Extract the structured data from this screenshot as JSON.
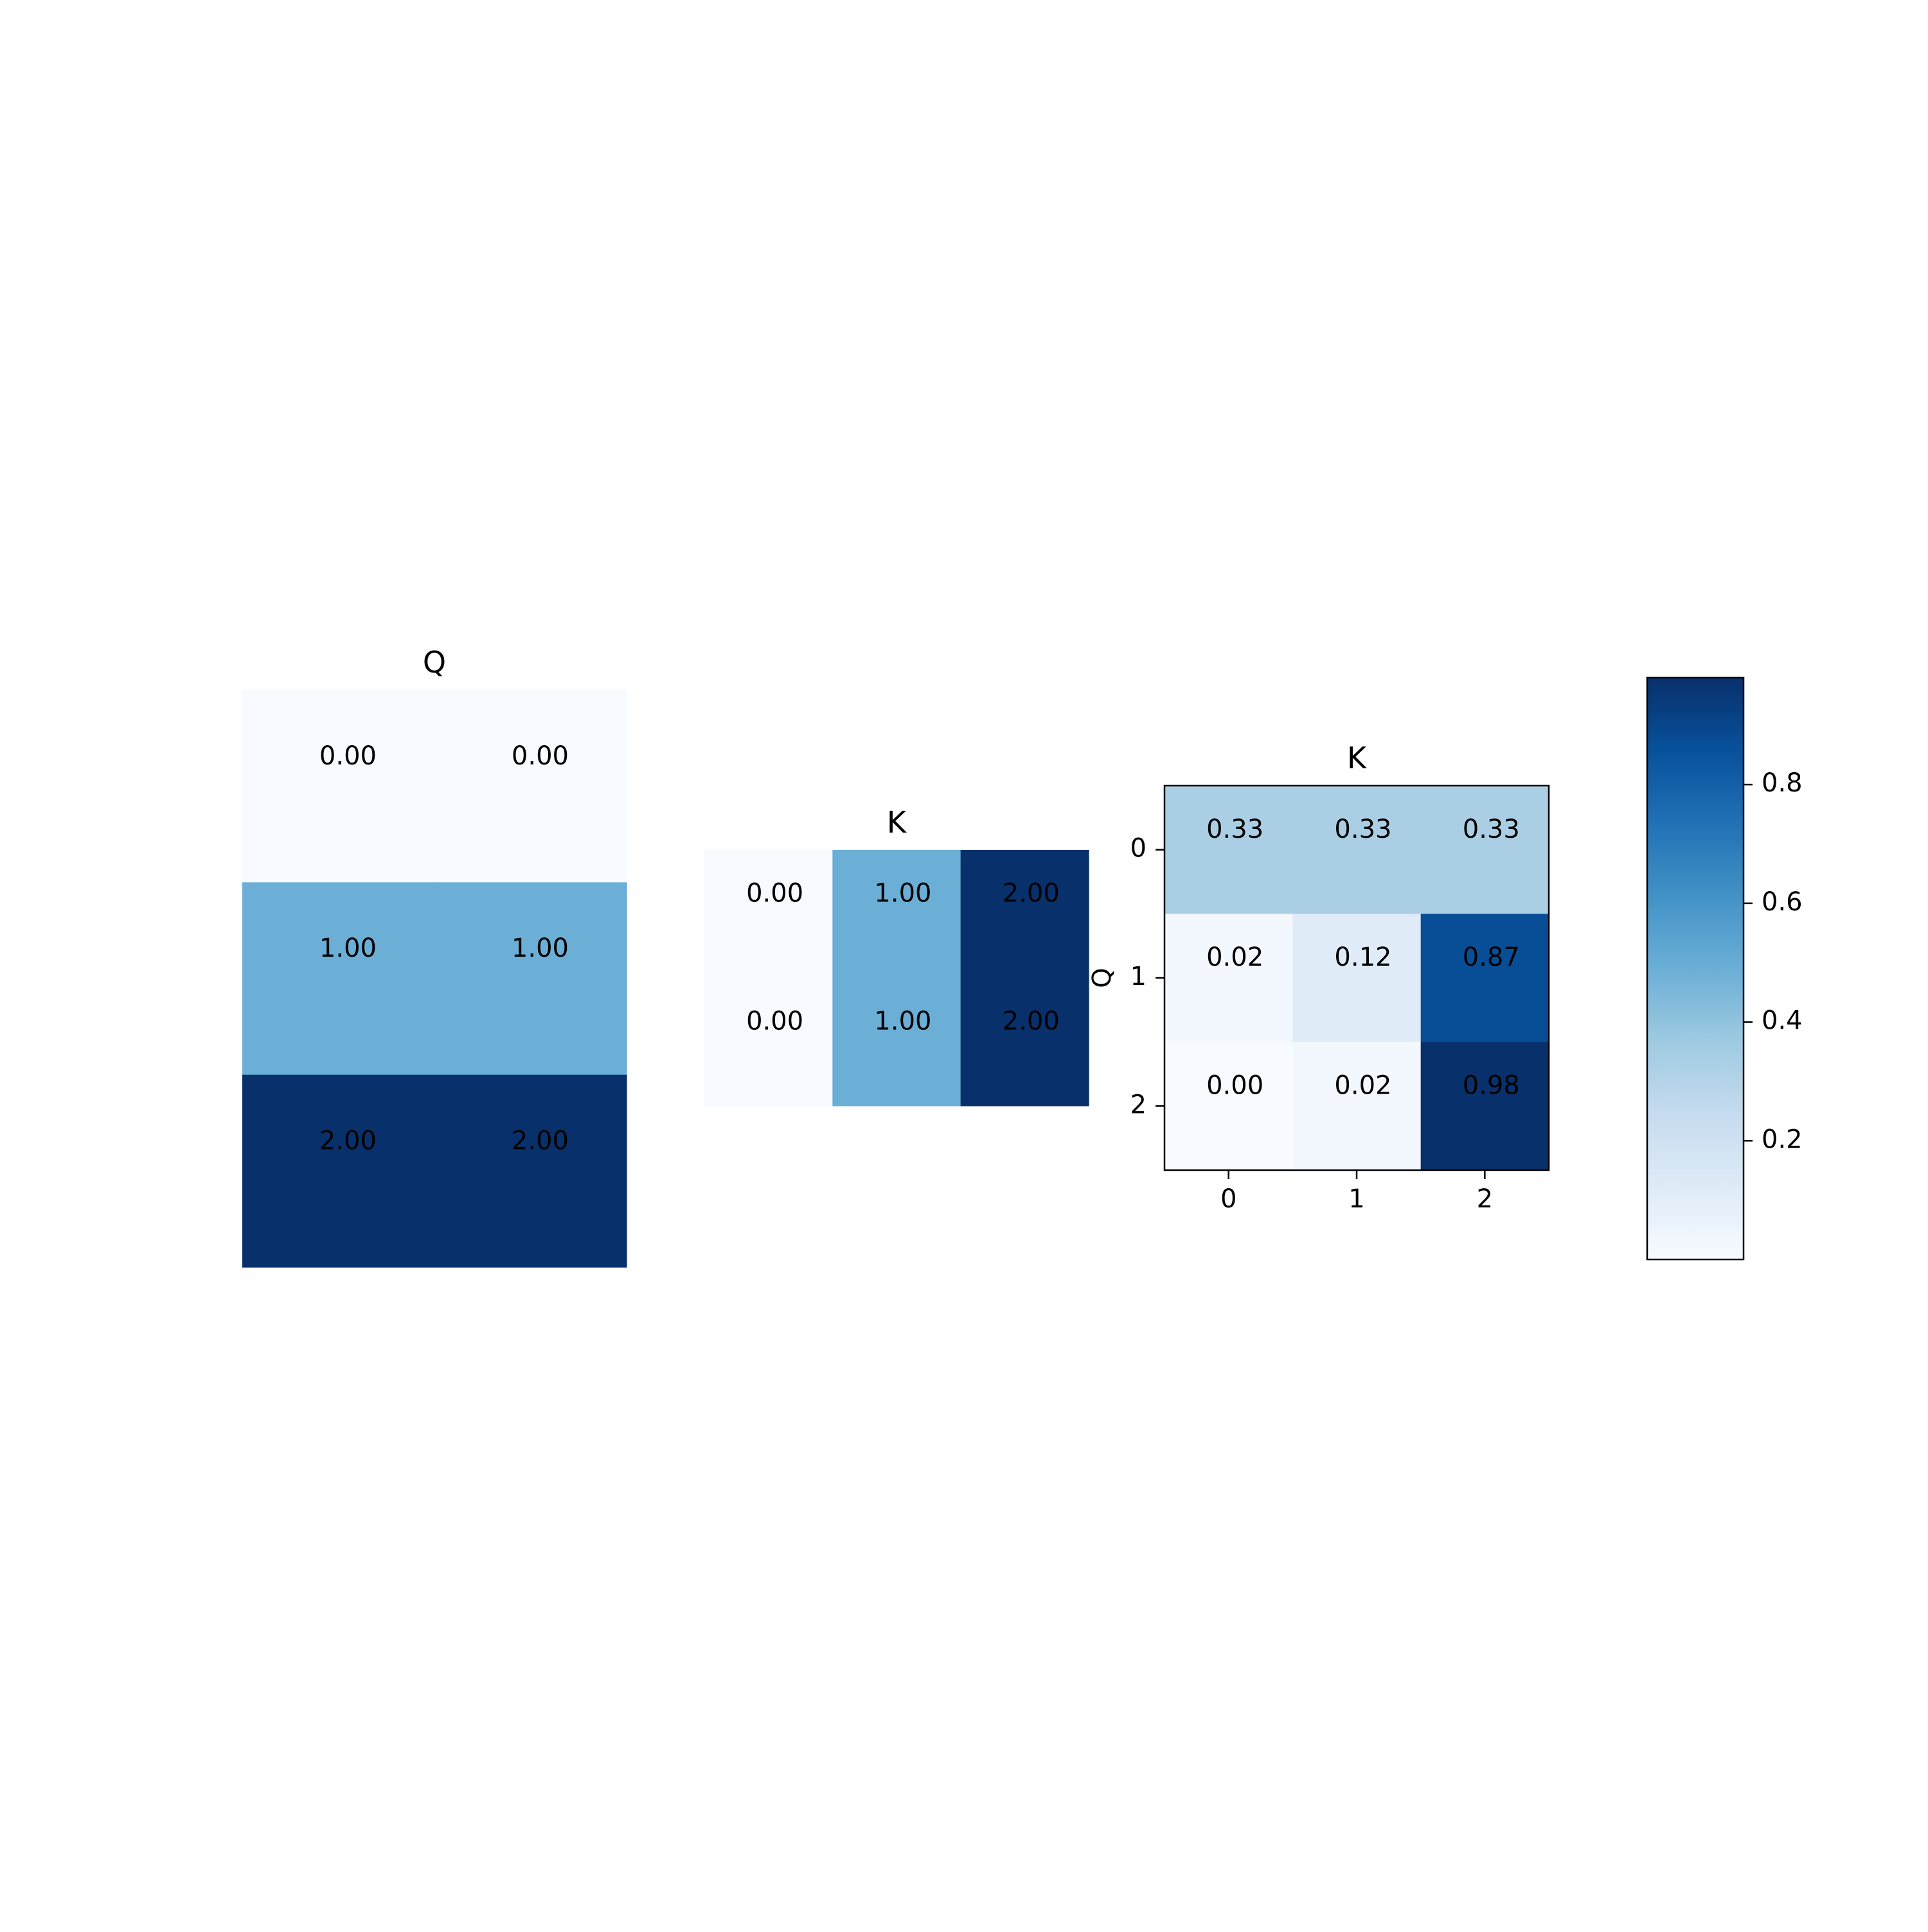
{
  "chart_data": [
    {
      "type": "heatmap",
      "title": "Q",
      "rows": 3,
      "cols": 2,
      "values": [
        [
          0,
          0
        ],
        [
          1,
          1
        ],
        [
          2,
          2
        ]
      ],
      "labels": [
        [
          "0.00",
          "0.00"
        ],
        [
          "1.00",
          "1.00"
        ],
        [
          "2.00",
          "2.00"
        ]
      ],
      "colormap": "Blues",
      "vmin": 0,
      "vmax": 2,
      "axes_visible": false
    },
    {
      "type": "heatmap",
      "title": "K",
      "rows": 2,
      "cols": 3,
      "values": [
        [
          0,
          1,
          2
        ],
        [
          0,
          1,
          2
        ]
      ],
      "labels": [
        [
          "0.00",
          "1.00",
          "2.00"
        ],
        [
          "0.00",
          "1.00",
          "2.00"
        ]
      ],
      "colormap": "Blues",
      "vmin": 0,
      "vmax": 2,
      "axes_visible": false
    },
    {
      "type": "heatmap",
      "title": "K",
      "ylabel": "Q",
      "xlabel": "",
      "rows": 3,
      "cols": 3,
      "values": [
        [
          0.33,
          0.33,
          0.33
        ],
        [
          0.02,
          0.12,
          0.87
        ],
        [
          0.0,
          0.02,
          0.98
        ]
      ],
      "labels": [
        [
          "0.33",
          "0.33",
          "0.33"
        ],
        [
          "0.02",
          "0.12",
          "0.87"
        ],
        [
          "0.00",
          "0.02",
          "0.98"
        ]
      ],
      "xticks": [
        "0",
        "1",
        "2"
      ],
      "yticks": [
        "0",
        "1",
        "2"
      ],
      "colormap": "Blues",
      "vmin": 0,
      "vmax": 0.98,
      "axes_visible": true,
      "colorbar": {
        "ticks": [
          0.2,
          0.4,
          0.6,
          0.8
        ],
        "tick_labels": [
          "0.2",
          "0.4",
          "0.6",
          "0.8"
        ],
        "vmin": 0,
        "vmax": 0.98
      }
    }
  ],
  "colors": {
    "blues_stops": [
      "#f7fbff",
      "#deebf7",
      "#c6dbef",
      "#9ecae1",
      "#6baed6",
      "#4292c6",
      "#2171b5",
      "#08519c",
      "#08306b"
    ],
    "text": "#000000",
    "frame": "#000000"
  }
}
